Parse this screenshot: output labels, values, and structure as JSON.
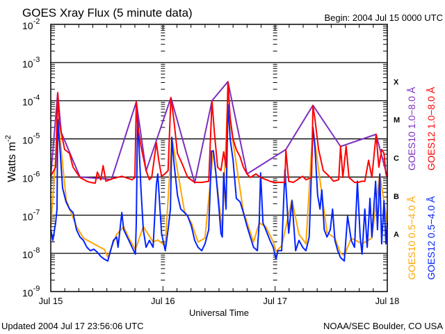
{
  "chart_data": {
    "type": "line",
    "title": "GOES Xray Flux (5 minute data)",
    "begin_label": "Begin:  2004 Jul 15 0000 UTC",
    "xlabel": "Universal Time",
    "ylabel": "Watts m",
    "ylabel_exp": "-2",
    "x_unit": "hours since 2004 Jul 15 0000 UTC",
    "xlim": [
      0,
      72
    ],
    "ylim_log10": [
      -9,
      -2
    ],
    "yscale": "log",
    "x_ticks": [
      {
        "h": 0,
        "label": "Jul 15"
      },
      {
        "h": 24,
        "label": "Jul 16"
      },
      {
        "h": 48,
        "label": "Jul 17"
      },
      {
        "h": 72,
        "label": "Jul 18"
      }
    ],
    "y_ticks": [
      {
        "exp": -2,
        "base": "10",
        "label": "-2"
      },
      {
        "exp": -3,
        "base": "10",
        "label": "-3"
      },
      {
        "exp": -4,
        "base": "10",
        "label": "-4"
      },
      {
        "exp": -5,
        "base": "10",
        "label": "-5"
      },
      {
        "exp": -6,
        "base": "10",
        "label": "-6"
      },
      {
        "exp": -7,
        "base": "10",
        "label": "-7"
      },
      {
        "exp": -8,
        "base": "10",
        "label": "-8"
      },
      {
        "exp": -9,
        "base": "10",
        "label": "-9"
      }
    ],
    "grid": "horizontal lines at each decade 1e-3..1e-8",
    "flare_classes": [
      {
        "label": "X",
        "center_log": -3.5
      },
      {
        "label": "M",
        "center_log": -4.5
      },
      {
        "label": "C",
        "center_log": -5.5
      },
      {
        "label": "B",
        "center_log": -6.5
      },
      {
        "label": "A",
        "center_log": -7.5
      }
    ],
    "legend_placement": "right (rotated)",
    "series": [
      {
        "name": "GOES10 0.5-4.0 Å",
        "color": "#ffa500",
        "values_log10": [
          [
            0,
            -7.3
          ],
          [
            1.6,
            -4.5
          ],
          [
            3.3,
            -6.6
          ],
          [
            5.5,
            -7.3
          ],
          [
            7,
            -7.6
          ],
          [
            9.2,
            -7.75
          ],
          [
            11.5,
            -7.9
          ],
          [
            12.2,
            -8.1
          ],
          [
            14.1,
            -7.5
          ],
          [
            15.6,
            -7.3
          ],
          [
            16.7,
            -7.6
          ],
          [
            18.1,
            -7.9
          ],
          [
            19.8,
            -7.3
          ],
          [
            21.9,
            -7.7
          ],
          [
            22.9,
            -7.65
          ],
          [
            24.5,
            -7.8
          ],
          [
            25.9,
            -4.96
          ],
          [
            28.6,
            -6.9
          ],
          [
            30.1,
            -7.2
          ],
          [
            31.5,
            -7.7
          ],
          [
            33,
            -7.6
          ],
          [
            34.8,
            -5.3
          ],
          [
            36.7,
            -7.45
          ],
          [
            37.8,
            -4.1
          ],
          [
            41.2,
            -6.9
          ],
          [
            43.4,
            -7.7
          ],
          [
            44.6,
            -7.2
          ],
          [
            46,
            -7.3
          ],
          [
            47.6,
            -7.7
          ],
          [
            48.2,
            -7.95
          ],
          [
            49.4,
            -7.8
          ],
          [
            51.6,
            -6.6
          ],
          [
            53.1,
            -7.5
          ],
          [
            54.6,
            -7.75
          ],
          [
            56.1,
            -4.7
          ],
          [
            59.1,
            -7.45
          ],
          [
            60.8,
            -7.6
          ],
          [
            62,
            -8.0
          ],
          [
            62.8,
            -8.05
          ],
          [
            64.3,
            -7.6
          ],
          [
            66.6,
            -7.75
          ],
          [
            68.7,
            -7.6
          ],
          [
            70.4,
            -5.92
          ],
          [
            72,
            -7.2
          ]
        ]
      },
      {
        "name": "GOES12 0.5-4.0 Å",
        "color": "#0022ff",
        "values_log10": [
          [
            0,
            -7.38
          ],
          [
            0.45,
            -7.66
          ],
          [
            1.04,
            -7.2
          ],
          [
            1.34,
            -6.84
          ],
          [
            1.49,
            -4.5
          ],
          [
            1.93,
            -5.19
          ],
          [
            2.53,
            -6.29
          ],
          [
            3.27,
            -6.65
          ],
          [
            4.02,
            -6.84
          ],
          [
            4.76,
            -6.93
          ],
          [
            5.5,
            -7.38
          ],
          [
            6.25,
            -7.57
          ],
          [
            6.99,
            -7.66
          ],
          [
            7.74,
            -7.84
          ],
          [
            8.48,
            -7.93
          ],
          [
            9.22,
            -7.89
          ],
          [
            9.97,
            -7.97
          ],
          [
            10.7,
            -8.08
          ],
          [
            11.45,
            -8.15
          ],
          [
            12.2,
            -8.2
          ],
          [
            12.6,
            -8.02
          ],
          [
            13.4,
            -7.66
          ],
          [
            14.1,
            -7.57
          ],
          [
            14.4,
            -7.84
          ],
          [
            15.2,
            -6.93
          ],
          [
            15.6,
            -7.38
          ],
          [
            16.7,
            -7.66
          ],
          [
            17.4,
            -7.84
          ],
          [
            18.1,
            -8.02
          ],
          [
            18.3,
            -7.2
          ],
          [
            18.6,
            -4.3
          ],
          [
            18.9,
            -5.2
          ],
          [
            19.3,
            -6.3
          ],
          [
            19.8,
            -7.38
          ],
          [
            20.4,
            -7.84
          ],
          [
            21.1,
            -7.66
          ],
          [
            21.9,
            -7.84
          ],
          [
            22.6,
            -6.2
          ],
          [
            22.9,
            -5.92
          ],
          [
            23.7,
            -7.47
          ],
          [
            24.5,
            -7.93
          ],
          [
            25.1,
            -7.38
          ],
          [
            25.6,
            -6.84
          ],
          [
            25.9,
            -4.96
          ],
          [
            26.3,
            -5.56
          ],
          [
            27.1,
            -6.47
          ],
          [
            27.8,
            -6.84
          ],
          [
            28.6,
            -6.93
          ],
          [
            29.3,
            -7.02
          ],
          [
            30.1,
            -7.29
          ],
          [
            30.8,
            -7.66
          ],
          [
            31.5,
            -7.84
          ],
          [
            32.3,
            -7.93
          ],
          [
            33,
            -7.75
          ],
          [
            33.8,
            -7.38
          ],
          [
            34.4,
            -5.32
          ],
          [
            34.8,
            -5.32
          ],
          [
            35.3,
            -5.87
          ],
          [
            36,
            -6.84
          ],
          [
            36.4,
            -7.47
          ],
          [
            36.7,
            -7.57
          ],
          [
            37,
            -5.89
          ],
          [
            37.5,
            -6.84
          ],
          [
            37.9,
            -4.1
          ],
          [
            38.4,
            -5.01
          ],
          [
            39,
            -5.56
          ],
          [
            39.7,
            -6.56
          ],
          [
            40.5,
            -6.65
          ],
          [
            41.2,
            -6.93
          ],
          [
            42,
            -7.29
          ],
          [
            42.7,
            -7.57
          ],
          [
            43.4,
            -7.84
          ],
          [
            44.2,
            -7.93
          ],
          [
            44.6,
            -7.2
          ],
          [
            44.9,
            -5.89
          ],
          [
            45.4,
            -7.2
          ],
          [
            46,
            -7.38
          ],
          [
            46.9,
            -7.66
          ],
          [
            47.6,
            -7.84
          ],
          [
            48.2,
            -8.15
          ],
          [
            48.6,
            -7.93
          ],
          [
            49.4,
            -7.93
          ],
          [
            50.1,
            -5.8
          ],
          [
            50.9,
            -7.47
          ],
          [
            51.6,
            -6.62
          ],
          [
            52.4,
            -7.93
          ],
          [
            53.1,
            -7.66
          ],
          [
            53.9,
            -7.84
          ],
          [
            54.6,
            -7.93
          ],
          [
            55.3,
            -7.57
          ],
          [
            56.1,
            -4.7
          ],
          [
            56.5,
            -5.19
          ],
          [
            57.1,
            -6.47
          ],
          [
            57.6,
            -6.84
          ],
          [
            58,
            -6.34
          ],
          [
            58.5,
            -7.38
          ],
          [
            59.1,
            -7.57
          ],
          [
            59.8,
            -7.38
          ],
          [
            60.3,
            -6.84
          ],
          [
            60.8,
            -7.66
          ],
          [
            61.4,
            -7.93
          ],
          [
            62,
            -8.11
          ],
          [
            62.8,
            -8.2
          ],
          [
            63.5,
            -7.02
          ],
          [
            64.3,
            -7.66
          ],
          [
            65,
            -7.84
          ],
          [
            65.6,
            -6.11
          ],
          [
            66.2,
            -7.57
          ],
          [
            66.6,
            -8.02
          ],
          [
            67.2,
            -6.84
          ],
          [
            67.7,
            -7.84
          ],
          [
            68.3,
            -6.56
          ],
          [
            68.7,
            -7.57
          ],
          [
            69.5,
            -6.11
          ],
          [
            69.9,
            -7.38
          ],
          [
            70.4,
            -5.92
          ],
          [
            70.8,
            -7.75
          ],
          [
            71.3,
            -6.62
          ],
          [
            71.7,
            -7.75
          ],
          [
            72,
            -7.2
          ]
        ]
      },
      {
        "name": "GOES10 1.0-8.0 Å",
        "color": "#7b2fbf",
        "values_log10": [
          [
            0,
            -5.98
          ],
          [
            1.49,
            -3.79
          ],
          [
            2.23,
            -4.83
          ],
          [
            6.25,
            -6.0
          ],
          [
            13,
            -6.06
          ],
          [
            18.3,
            -4.03
          ],
          [
            20.4,
            -5.84
          ],
          [
            25.7,
            -3.92
          ],
          [
            30.8,
            -6.15
          ],
          [
            34.5,
            -4.0
          ],
          [
            37.9,
            -3.5
          ],
          [
            42,
            -5.92
          ],
          [
            50.3,
            -5.28
          ],
          [
            56.1,
            -4.12
          ],
          [
            62,
            -5.2
          ],
          [
            69.6,
            -4.88
          ],
          [
            72,
            -6.0
          ]
        ]
      },
      {
        "name": "GOES12 1.0-8.0 Å",
        "color": "#ff0000",
        "values_log10": [
          [
            0,
            -5.98
          ],
          [
            1.04,
            -5.74
          ],
          [
            1.49,
            -3.79
          ],
          [
            1.79,
            -4.55
          ],
          [
            2.23,
            -4.83
          ],
          [
            2.98,
            -5.28
          ],
          [
            4.02,
            -5.38
          ],
          [
            4.76,
            -5.74
          ],
          [
            6.25,
            -6.01
          ],
          [
            7.74,
            -6.11
          ],
          [
            8.48,
            -6.14
          ],
          [
            9.52,
            -6.16
          ],
          [
            9.97,
            -5.87
          ],
          [
            10.7,
            -6.07
          ],
          [
            11.2,
            -5.7
          ],
          [
            11.8,
            -6.11
          ],
          [
            13,
            -6.05
          ],
          [
            15.2,
            -5.98
          ],
          [
            17.4,
            -6.07
          ],
          [
            18,
            -6.01
          ],
          [
            18.3,
            -4.03
          ],
          [
            18.6,
            -4.65
          ],
          [
            19.3,
            -5.19
          ],
          [
            20.4,
            -5.83
          ],
          [
            21.1,
            -6.07
          ],
          [
            21.6,
            -6.01
          ],
          [
            22.2,
            -5.47
          ],
          [
            22.6,
            -5.1
          ],
          [
            23.1,
            -5.56
          ],
          [
            23.7,
            -5.98
          ],
          [
            24.4,
            -5.92
          ],
          [
            25.1,
            -5.83
          ],
          [
            25.7,
            -3.92
          ],
          [
            26.3,
            -4.46
          ],
          [
            27.1,
            -5.38
          ],
          [
            28.1,
            -5.65
          ],
          [
            29.3,
            -6.01
          ],
          [
            30.8,
            -6.14
          ],
          [
            32.3,
            -6.14
          ],
          [
            33.8,
            -6.11
          ],
          [
            34.5,
            -4.01
          ],
          [
            35,
            -4.83
          ],
          [
            35.7,
            -5.74
          ],
          [
            36.4,
            -5.83
          ],
          [
            37,
            -5.34
          ],
          [
            37.5,
            -5.74
          ],
          [
            37.9,
            -3.51
          ],
          [
            38.4,
            -4.46
          ],
          [
            39,
            -5.01
          ],
          [
            39.7,
            -5.28
          ],
          [
            40.5,
            -5.47
          ],
          [
            41.2,
            -5.74
          ],
          [
            42,
            -5.92
          ],
          [
            42.7,
            -6.01
          ],
          [
            43.9,
            -5.92
          ],
          [
            44.9,
            -6.01
          ],
          [
            45.7,
            -6.05
          ],
          [
            46.9,
            -6.11
          ],
          [
            47.9,
            -6.14
          ],
          [
            48.6,
            -6.14
          ],
          [
            50.1,
            -6.14
          ],
          [
            50.3,
            -5.28
          ],
          [
            50.9,
            -6.11
          ],
          [
            51.9,
            -6.14
          ],
          [
            53.9,
            -5.98
          ],
          [
            54.6,
            -6.07
          ],
          [
            55.8,
            -6.01
          ],
          [
            56.1,
            -4.14
          ],
          [
            56.5,
            -4.46
          ],
          [
            57.3,
            -5.28
          ],
          [
            58.3,
            -5.83
          ],
          [
            59.8,
            -6.01
          ],
          [
            60.5,
            -6.11
          ],
          [
            61.6,
            -6.07
          ],
          [
            62,
            -5.19
          ],
          [
            62.5,
            -6.01
          ],
          [
            63.2,
            -5.19
          ],
          [
            63.8,
            -6.01
          ],
          [
            65,
            -6.14
          ],
          [
            65.8,
            -6.14
          ],
          [
            66.5,
            -6.11
          ],
          [
            67.2,
            -6.11
          ],
          [
            68,
            -5.56
          ],
          [
            68.7,
            -6.01
          ],
          [
            69.6,
            -4.88
          ],
          [
            70.2,
            -5.74
          ],
          [
            70.8,
            -5.28
          ],
          [
            71.3,
            -5.38
          ],
          [
            71.7,
            -5.92
          ],
          [
            72,
            -6.0
          ]
        ]
      }
    ]
  },
  "footer": {
    "updated": "Updated 2004 Jul 17 23:56:06 UTC",
    "credit": "NOAA/SEC Boulder, CO USA"
  }
}
